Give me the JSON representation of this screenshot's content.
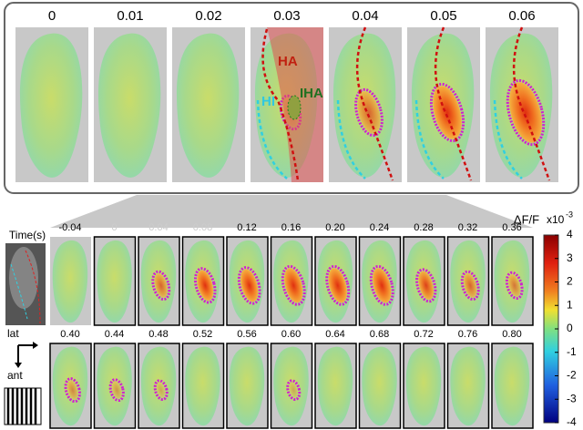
{
  "top_panel": {
    "times": [
      "0",
      "0.01",
      "0.02",
      "0.03",
      "0.04",
      "0.05",
      "0.06"
    ],
    "regions": {
      "ha": "HA",
      "hi": "HI",
      "iha": "IHA"
    }
  },
  "time_series": {
    "rows": [
      [
        "-0.04",
        "0",
        "0.04",
        "0.08",
        "0.12",
        "0.16",
        "0.20",
        "0.24",
        "0.28",
        "0.32",
        "0.36"
      ],
      [
        "0.40",
        "0.44",
        "0.48",
        "0.52",
        "0.56",
        "0.60",
        "0.64",
        "0.68",
        "0.72",
        "0.76",
        "0.80"
      ]
    ]
  },
  "inset": {
    "label": "Time(s)"
  },
  "orientation": {
    "lateral": "lat",
    "anterior": "ant"
  },
  "colorbar": {
    "title": "ΔF/F",
    "multiplier": "x10",
    "exponent": "-3",
    "lim": [
      -4,
      4
    ],
    "ticks": [
      4,
      3,
      2,
      1,
      0,
      -1,
      -2,
      -3,
      -4
    ]
  }
}
